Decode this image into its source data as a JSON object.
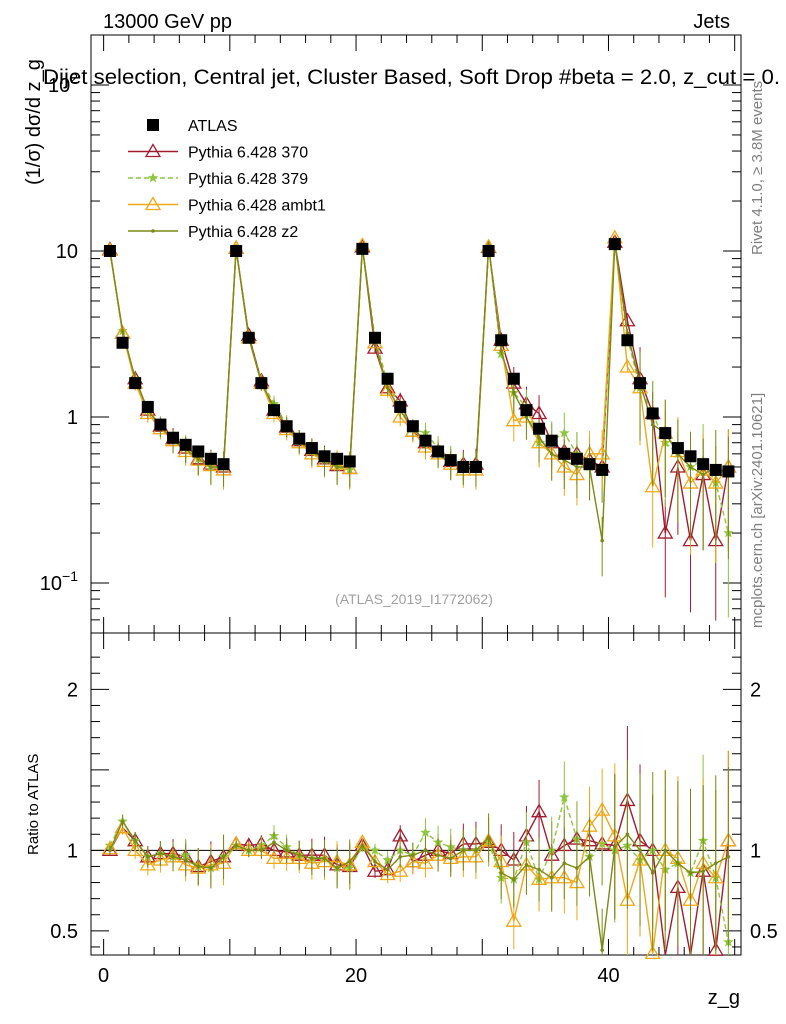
{
  "header": {
    "left": "13000 GeV pp",
    "right": "Jets",
    "selection": "Dijet selection, Central jet, Cluster Based, Soft Drop #beta = 2.0, z_cut = 0.",
    "side_rivet": "Rivet 4.1.0, ≥ 3.8M events",
    "side_mcplots": "mcplots.cern.ch [arXiv:2401.10621]",
    "watermark": "(ATLAS_2019_I1772062)"
  },
  "chart_data": [
    {
      "type": "scatter",
      "panel": "main",
      "title": "Dijet selection, Central jet, Cluster Based, Soft Drop #beta = 2.0, z_cut = 0.",
      "xlabel": "z_g",
      "ylabel": "(1/σ) dσ/d z_g",
      "yscale": "log",
      "xlim": [
        -1,
        50.5
      ],
      "ylim": [
        0.05,
        200
      ],
      "x_ticks": [
        0,
        20,
        40
      ],
      "y_ticks": [
        {
          "value": 0.1,
          "label": "10^−1"
        },
        {
          "value": 1,
          "label": "1"
        },
        {
          "value": 10,
          "label": "10"
        },
        {
          "value": 100,
          "label": "10^2"
        }
      ],
      "legend_position": "top-left",
      "x": [
        0.5,
        1.5,
        2.5,
        3.5,
        4.5,
        5.5,
        6.5,
        7.5,
        8.5,
        9.5,
        10.5,
        11.5,
        12.5,
        13.5,
        14.5,
        15.5,
        16.5,
        17.5,
        18.5,
        19.5,
        20.5,
        21.5,
        22.5,
        23.5,
        24.5,
        25.5,
        26.5,
        27.5,
        28.5,
        29.5,
        30.5,
        31.5,
        32.5,
        33.5,
        34.5,
        35.5,
        36.5,
        37.5,
        38.5,
        39.5,
        40.5,
        41.5,
        42.5,
        43.5,
        44.5,
        45.5,
        46.5,
        47.5,
        48.5,
        49.5
      ],
      "series": [
        {
          "name": "ATLAS",
          "color": "#000000",
          "marker": "square",
          "values": [
            10.0,
            2.8,
            1.6,
            1.15,
            0.9,
            0.75,
            0.68,
            0.62,
            0.56,
            0.52,
            10.0,
            3.0,
            1.6,
            1.1,
            0.88,
            0.74,
            0.65,
            0.58,
            0.56,
            0.54,
            10.3,
            3.0,
            1.7,
            1.15,
            0.88,
            0.72,
            0.62,
            0.55,
            0.5,
            0.5,
            10.0,
            2.9,
            1.7,
            1.1,
            0.85,
            0.72,
            0.6,
            0.56,
            0.52,
            0.48,
            11.0,
            2.9,
            1.6,
            1.05,
            0.8,
            0.65,
            0.58,
            0.52,
            0.48,
            0.47
          ]
        },
        {
          "name": "Pythia 6.428 370",
          "color": "#a31b2e",
          "marker": "triangle-open",
          "values": [
            10.2,
            3.2,
            1.7,
            1.1,
            0.88,
            0.74,
            0.65,
            0.56,
            0.52,
            0.5,
            10.4,
            3.1,
            1.65,
            1.1,
            0.87,
            0.72,
            0.63,
            0.56,
            0.51,
            0.49,
            10.6,
            2.6,
            1.5,
            1.25,
            0.82,
            0.7,
            0.62,
            0.54,
            0.52,
            0.52,
            10.5,
            2.9,
            1.6,
            1.2,
            1.05,
            0.7,
            0.62,
            0.6,
            0.55,
            0.5,
            11.3,
            3.8,
            1.7,
            1.05,
            0.2,
            0.5,
            0.18,
            0.45,
            0.18,
            0.5
          ]
        },
        {
          "name": "Pythia 6.428 379",
          "color": "#8dc63f",
          "marker": "star",
          "dashed": true,
          "values": [
            10.3,
            3.3,
            1.7,
            1.1,
            0.88,
            0.72,
            0.66,
            0.56,
            0.5,
            0.5,
            10.3,
            3.0,
            1.65,
            1.2,
            0.9,
            0.72,
            0.62,
            0.55,
            0.5,
            0.48,
            10.5,
            3.0,
            1.6,
            1.15,
            0.85,
            0.8,
            0.65,
            0.56,
            0.5,
            0.5,
            10.5,
            2.4,
            1.4,
            1.15,
            0.7,
            0.72,
            0.8,
            0.6,
            0.5,
            0.5,
            11.0,
            3.0,
            1.5,
            1.05,
            0.7,
            0.6,
            0.5,
            0.55,
            0.4,
            0.2
          ]
        },
        {
          "name": "Pythia 6.428 ambt1",
          "color": "#f0a818",
          "marker": "triangle-open",
          "values": [
            10.1,
            3.2,
            1.6,
            1.05,
            0.85,
            0.72,
            0.62,
            0.55,
            0.51,
            0.48,
            10.4,
            3.0,
            1.6,
            1.05,
            0.84,
            0.7,
            0.6,
            0.54,
            0.52,
            0.49,
            10.8,
            2.8,
            1.45,
            1.0,
            0.82,
            0.66,
            0.6,
            0.52,
            0.48,
            0.48,
            10.6,
            2.7,
            0.95,
            1.0,
            0.7,
            0.6,
            0.5,
            0.45,
            0.6,
            0.6,
            12.0,
            2.0,
            1.5,
            0.38,
            0.8,
            0.62,
            0.4,
            0.48,
            0.4,
            0.5
          ]
        },
        {
          "name": "Pythia 6.428 z2",
          "color": "#7a8a14",
          "marker": "dot",
          "values": [
            10.0,
            3.3,
            1.7,
            1.1,
            0.88,
            0.72,
            0.64,
            0.56,
            0.5,
            0.5,
            10.3,
            3.0,
            1.6,
            1.15,
            0.88,
            0.72,
            0.62,
            0.55,
            0.5,
            0.5,
            10.6,
            2.8,
            1.5,
            1.1,
            0.85,
            0.72,
            0.6,
            0.52,
            0.5,
            0.5,
            10.8,
            2.5,
            1.4,
            1.0,
            0.75,
            0.6,
            0.55,
            0.5,
            0.5,
            0.18,
            11.2,
            3.2,
            1.6,
            0.9,
            0.8,
            0.6,
            0.5,
            0.45,
            0.5,
            0.45
          ]
        }
      ]
    },
    {
      "type": "scatter",
      "panel": "ratio",
      "xlabel": "z_g",
      "ylabel": "Ratio to ATLAS",
      "xlim": [
        -1,
        50.5
      ],
      "ylim": [
        0.35,
        2.35
      ],
      "x_ticks": [
        0,
        20,
        40
      ],
      "y_ticks": [
        0.5,
        1,
        2
      ],
      "reference_line": 1,
      "x": [
        0.5,
        1.5,
        2.5,
        3.5,
        4.5,
        5.5,
        6.5,
        7.5,
        8.5,
        9.5,
        10.5,
        11.5,
        12.5,
        13.5,
        14.5,
        15.5,
        16.5,
        17.5,
        18.5,
        19.5,
        20.5,
        21.5,
        22.5,
        23.5,
        24.5,
        25.5,
        26.5,
        27.5,
        28.5,
        29.5,
        30.5,
        31.5,
        32.5,
        33.5,
        34.5,
        35.5,
        36.5,
        37.5,
        38.5,
        39.5,
        40.5,
        41.5,
        42.5,
        43.5,
        44.5,
        45.5,
        46.5,
        47.5,
        48.5,
        49.5
      ],
      "series": [
        {
          "name": "Pythia 6.428 370",
          "color": "#a31b2e",
          "values": [
            1.0,
            1.14,
            1.06,
            0.96,
            0.98,
            0.98,
            0.96,
            0.9,
            0.93,
            0.96,
            1.04,
            1.03,
            1.04,
            1.0,
            0.99,
            0.97,
            0.97,
            0.97,
            0.91,
            0.9,
            1.03,
            0.87,
            0.88,
            1.09,
            0.93,
            0.97,
            1.0,
            0.98,
            1.04,
            1.04,
            1.05,
            1.0,
            0.94,
            1.09,
            1.24,
            0.97,
            1.03,
            1.07,
            1.06,
            1.04,
            1.03,
            1.31,
            1.06,
            1.0,
            0.25,
            0.77,
            0.31,
            0.87,
            0.38,
            1.06
          ]
        },
        {
          "name": "Pythia 6.428 379",
          "color": "#8dc63f",
          "values": [
            1.03,
            1.18,
            1.06,
            0.96,
            0.98,
            0.96,
            0.97,
            0.9,
            0.89,
            0.96,
            1.03,
            1.0,
            1.03,
            1.09,
            1.02,
            0.97,
            0.95,
            0.95,
            0.89,
            0.89,
            1.02,
            1.0,
            0.94,
            1.0,
            0.97,
            1.11,
            1.05,
            1.02,
            1.0,
            1.0,
            1.05,
            0.83,
            0.82,
            1.05,
            0.82,
            1.0,
            1.33,
            1.07,
            0.96,
            1.04,
            1.0,
            1.03,
            0.94,
            1.0,
            0.88,
            0.92,
            0.86,
            1.06,
            0.83,
            0.43
          ]
        },
        {
          "name": "Pythia 6.428 ambt1",
          "color": "#f0a818",
          "values": [
            1.01,
            1.14,
            1.0,
            0.91,
            0.94,
            0.96,
            0.91,
            0.89,
            0.91,
            0.92,
            1.04,
            1.0,
            1.0,
            0.95,
            0.95,
            0.95,
            0.92,
            0.93,
            0.93,
            0.91,
            1.05,
            0.93,
            0.85,
            0.87,
            0.93,
            0.92,
            0.97,
            0.95,
            0.96,
            0.96,
            1.06,
            0.93,
            0.56,
            0.91,
            0.82,
            0.83,
            0.83,
            0.8,
            1.15,
            1.25,
            1.09,
            0.69,
            0.94,
            0.36,
            1.0,
            0.95,
            0.69,
            0.92,
            0.83,
            1.06
          ]
        },
        {
          "name": "Pythia 6.428 z2",
          "color": "#7a8a14",
          "values": [
            1.0,
            1.18,
            1.06,
            0.96,
            0.98,
            0.96,
            0.94,
            0.9,
            0.89,
            0.96,
            1.03,
            1.0,
            1.0,
            1.05,
            1.0,
            0.97,
            0.95,
            0.95,
            0.89,
            0.93,
            1.03,
            0.93,
            0.88,
            0.96,
            0.97,
            1.0,
            0.97,
            0.95,
            1.0,
            1.0,
            1.08,
            0.86,
            0.82,
            0.91,
            0.88,
            0.83,
            0.92,
            0.89,
            0.96,
            0.38,
            1.02,
            1.1,
            1.0,
            0.86,
            1.0,
            0.92,
            0.86,
            0.87,
            0.92,
            0.96
          ]
        }
      ]
    }
  ]
}
